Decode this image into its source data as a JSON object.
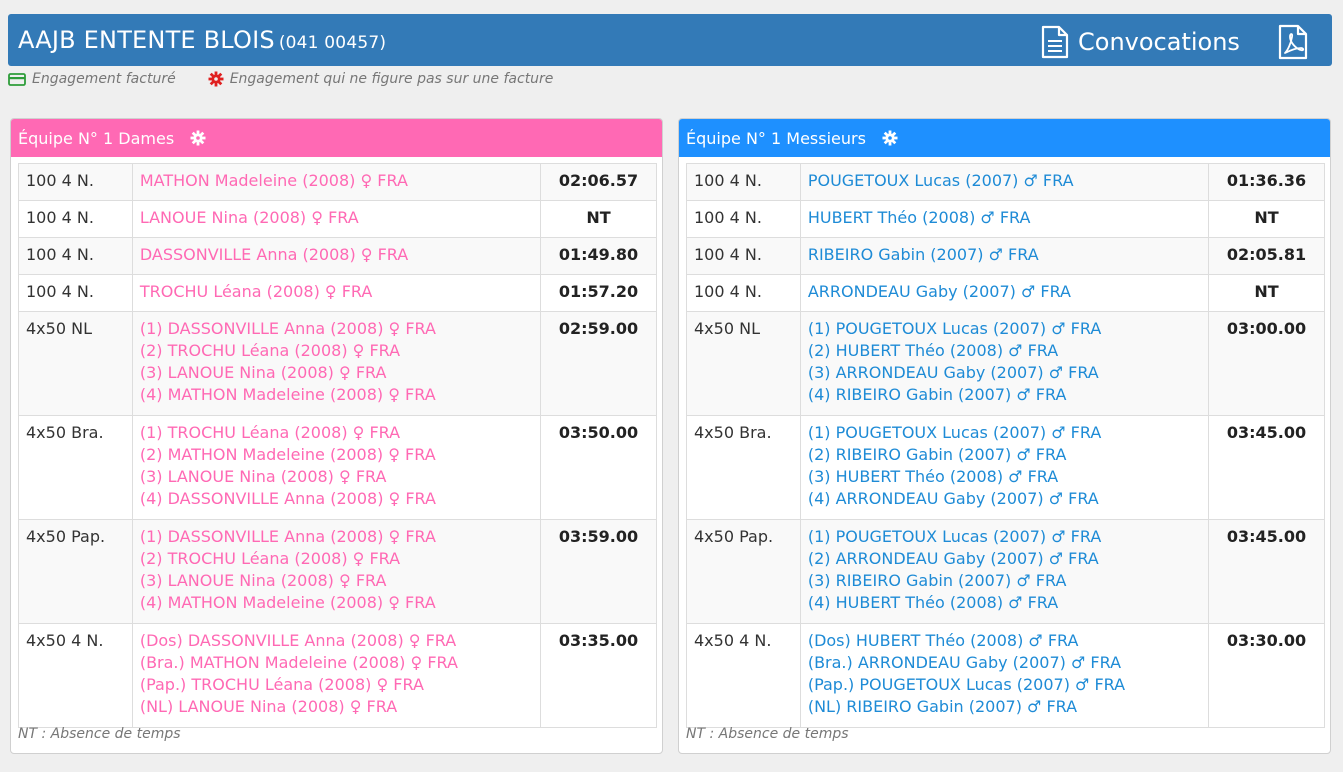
{
  "header": {
    "club_name": "AAJB ENTENTE BLOIS",
    "club_code": "(041 00457)",
    "convocations_label": "Convocations",
    "convocations_icon": "document-icon",
    "pdf_icon": "pdf-icon"
  },
  "legend": {
    "invoiced": "Engagement facturé",
    "not_invoiced": "Engagement qui ne figure pas sur une facture",
    "invoiced_color": "#2e9d3a",
    "not_invoiced_color": "#e02020"
  },
  "colors": {
    "header": "#337ab7",
    "dames": "#ff69b4",
    "messieurs": "#1e90ff"
  },
  "teams": [
    {
      "title": "Équipe N° 1 Dames",
      "rows": [
        {
          "event": "100 4 N.",
          "swimmers": [
            "MATHON Madeleine (2008) ♀ FRA"
          ],
          "time": "02:06.57"
        },
        {
          "event": "100 4 N.",
          "swimmers": [
            "LANOUE Nina (2008) ♀ FRA"
          ],
          "time": "NT"
        },
        {
          "event": "100 4 N.",
          "swimmers": [
            "DASSONVILLE Anna (2008) ♀ FRA"
          ],
          "time": "01:49.80"
        },
        {
          "event": "100 4 N.",
          "swimmers": [
            "TROCHU Léana (2008) ♀ FRA"
          ],
          "time": "01:57.20"
        },
        {
          "event": "4x50 NL",
          "swimmers": [
            "(1) DASSONVILLE Anna (2008) ♀ FRA",
            "(2) TROCHU Léana (2008) ♀ FRA",
            "(3) LANOUE Nina (2008) ♀ FRA",
            "(4) MATHON Madeleine (2008) ♀ FRA"
          ],
          "time": "02:59.00"
        },
        {
          "event": "4x50 Bra.",
          "swimmers": [
            "(1) TROCHU Léana (2008) ♀ FRA",
            "(2) MATHON Madeleine (2008) ♀ FRA",
            "(3) LANOUE Nina (2008) ♀ FRA",
            "(4) DASSONVILLE Anna (2008) ♀ FRA"
          ],
          "time": "03:50.00"
        },
        {
          "event": "4x50 Pap.",
          "swimmers": [
            "(1) DASSONVILLE Anna (2008) ♀ FRA",
            "(2) TROCHU Léana (2008) ♀ FRA",
            "(3) LANOUE Nina (2008) ♀ FRA",
            "(4) MATHON Madeleine (2008) ♀ FRA"
          ],
          "time": "03:59.00"
        },
        {
          "event": "4x50 4 N.",
          "swimmers": [
            "(Dos) DASSONVILLE Anna (2008) ♀ FRA",
            "(Bra.) MATHON Madeleine (2008) ♀ FRA",
            "(Pap.) TROCHU Léana (2008) ♀ FRA",
            "(NL) LANOUE Nina (2008) ♀ FRA"
          ],
          "time": "03:35.00"
        }
      ],
      "footnote": "NT : Absence de temps"
    },
    {
      "title": "Équipe N° 1 Messieurs",
      "rows": [
        {
          "event": "100 4 N.",
          "swimmers": [
            "POUGETOUX Lucas (2007) ♂ FRA"
          ],
          "time": "01:36.36"
        },
        {
          "event": "100 4 N.",
          "swimmers": [
            "HUBERT Théo (2008) ♂ FRA"
          ],
          "time": "NT"
        },
        {
          "event": "100 4 N.",
          "swimmers": [
            "RIBEIRO Gabin (2007) ♂ FRA"
          ],
          "time": "02:05.81"
        },
        {
          "event": "100 4 N.",
          "swimmers": [
            "ARRONDEAU Gaby (2007) ♂ FRA"
          ],
          "time": "NT"
        },
        {
          "event": "4x50 NL",
          "swimmers": [
            "(1) POUGETOUX Lucas (2007) ♂ FRA",
            "(2) HUBERT Théo (2008) ♂ FRA",
            "(3) ARRONDEAU Gaby (2007) ♂ FRA",
            "(4) RIBEIRO Gabin (2007) ♂ FRA"
          ],
          "time": "03:00.00"
        },
        {
          "event": "4x50 Bra.",
          "swimmers": [
            "(1) POUGETOUX Lucas (2007) ♂ FRA",
            "(2) RIBEIRO Gabin (2007) ♂ FRA",
            "(3) HUBERT Théo (2008) ♂ FRA",
            "(4) ARRONDEAU Gaby (2007) ♂ FRA"
          ],
          "time": "03:45.00"
        },
        {
          "event": "4x50 Pap.",
          "swimmers": [
            "(1) POUGETOUX Lucas (2007) ♂ FRA",
            "(2) ARRONDEAU Gaby (2007) ♂ FRA",
            "(3) RIBEIRO Gabin (2007) ♂ FRA",
            "(4) HUBERT Théo (2008) ♂ FRA"
          ],
          "time": "03:45.00"
        },
        {
          "event": "4x50 4 N.",
          "swimmers": [
            "(Dos) HUBERT Théo (2008) ♂ FRA",
            "(Bra.) ARRONDEAU Gaby (2007) ♂ FRA",
            "(Pap.) POUGETOUX Lucas (2007) ♂ FRA",
            "(NL) RIBEIRO Gabin (2007) ♂ FRA"
          ],
          "time": "03:30.00"
        }
      ],
      "footnote": "NT : Absence de temps"
    }
  ]
}
